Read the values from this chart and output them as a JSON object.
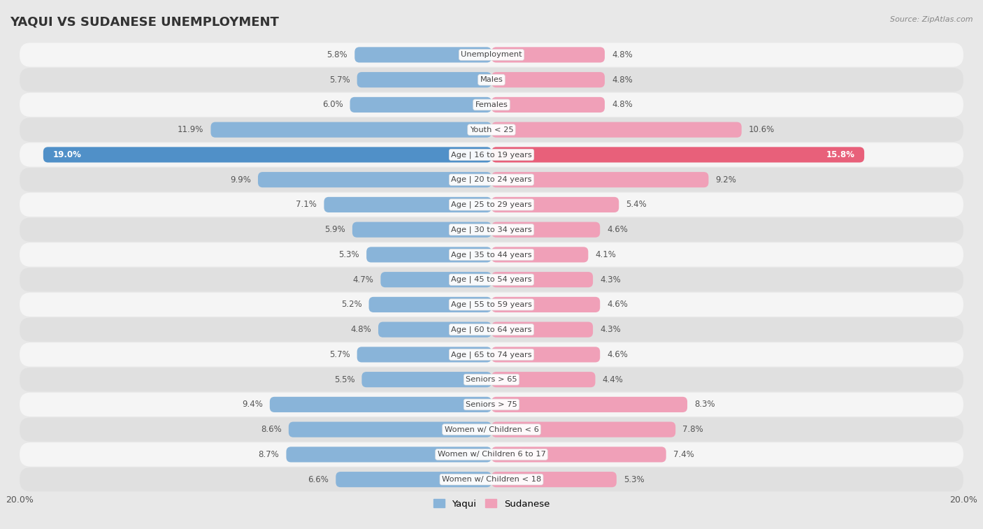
{
  "title": "YAQUI VS SUDANESE UNEMPLOYMENT",
  "source": "Source: ZipAtlas.com",
  "categories": [
    "Unemployment",
    "Males",
    "Females",
    "Youth < 25",
    "Age | 16 to 19 years",
    "Age | 20 to 24 years",
    "Age | 25 to 29 years",
    "Age | 30 to 34 years",
    "Age | 35 to 44 years",
    "Age | 45 to 54 years",
    "Age | 55 to 59 years",
    "Age | 60 to 64 years",
    "Age | 65 to 74 years",
    "Seniors > 65",
    "Seniors > 75",
    "Women w/ Children < 6",
    "Women w/ Children 6 to 17",
    "Women w/ Children < 18"
  ],
  "yaqui": [
    5.8,
    5.7,
    6.0,
    11.9,
    19.0,
    9.9,
    7.1,
    5.9,
    5.3,
    4.7,
    5.2,
    4.8,
    5.7,
    5.5,
    9.4,
    8.6,
    8.7,
    6.6
  ],
  "sudanese": [
    4.8,
    4.8,
    4.8,
    10.6,
    15.8,
    9.2,
    5.4,
    4.6,
    4.1,
    4.3,
    4.6,
    4.3,
    4.6,
    4.4,
    8.3,
    7.8,
    7.4,
    5.3
  ],
  "yaqui_color": "#89b4d9",
  "sudanese_color": "#f0a0b8",
  "yaqui_highlight_color": "#5090c8",
  "sudanese_highlight_color": "#e8607a",
  "bg_color": "#e8e8e8",
  "row_white_color": "#f5f5f5",
  "row_grey_color": "#e0e0e0",
  "axis_limit": 20.0,
  "bar_height": 0.62,
  "legend_yaqui": "Yaqui",
  "legend_sudanese": "Sudanese"
}
